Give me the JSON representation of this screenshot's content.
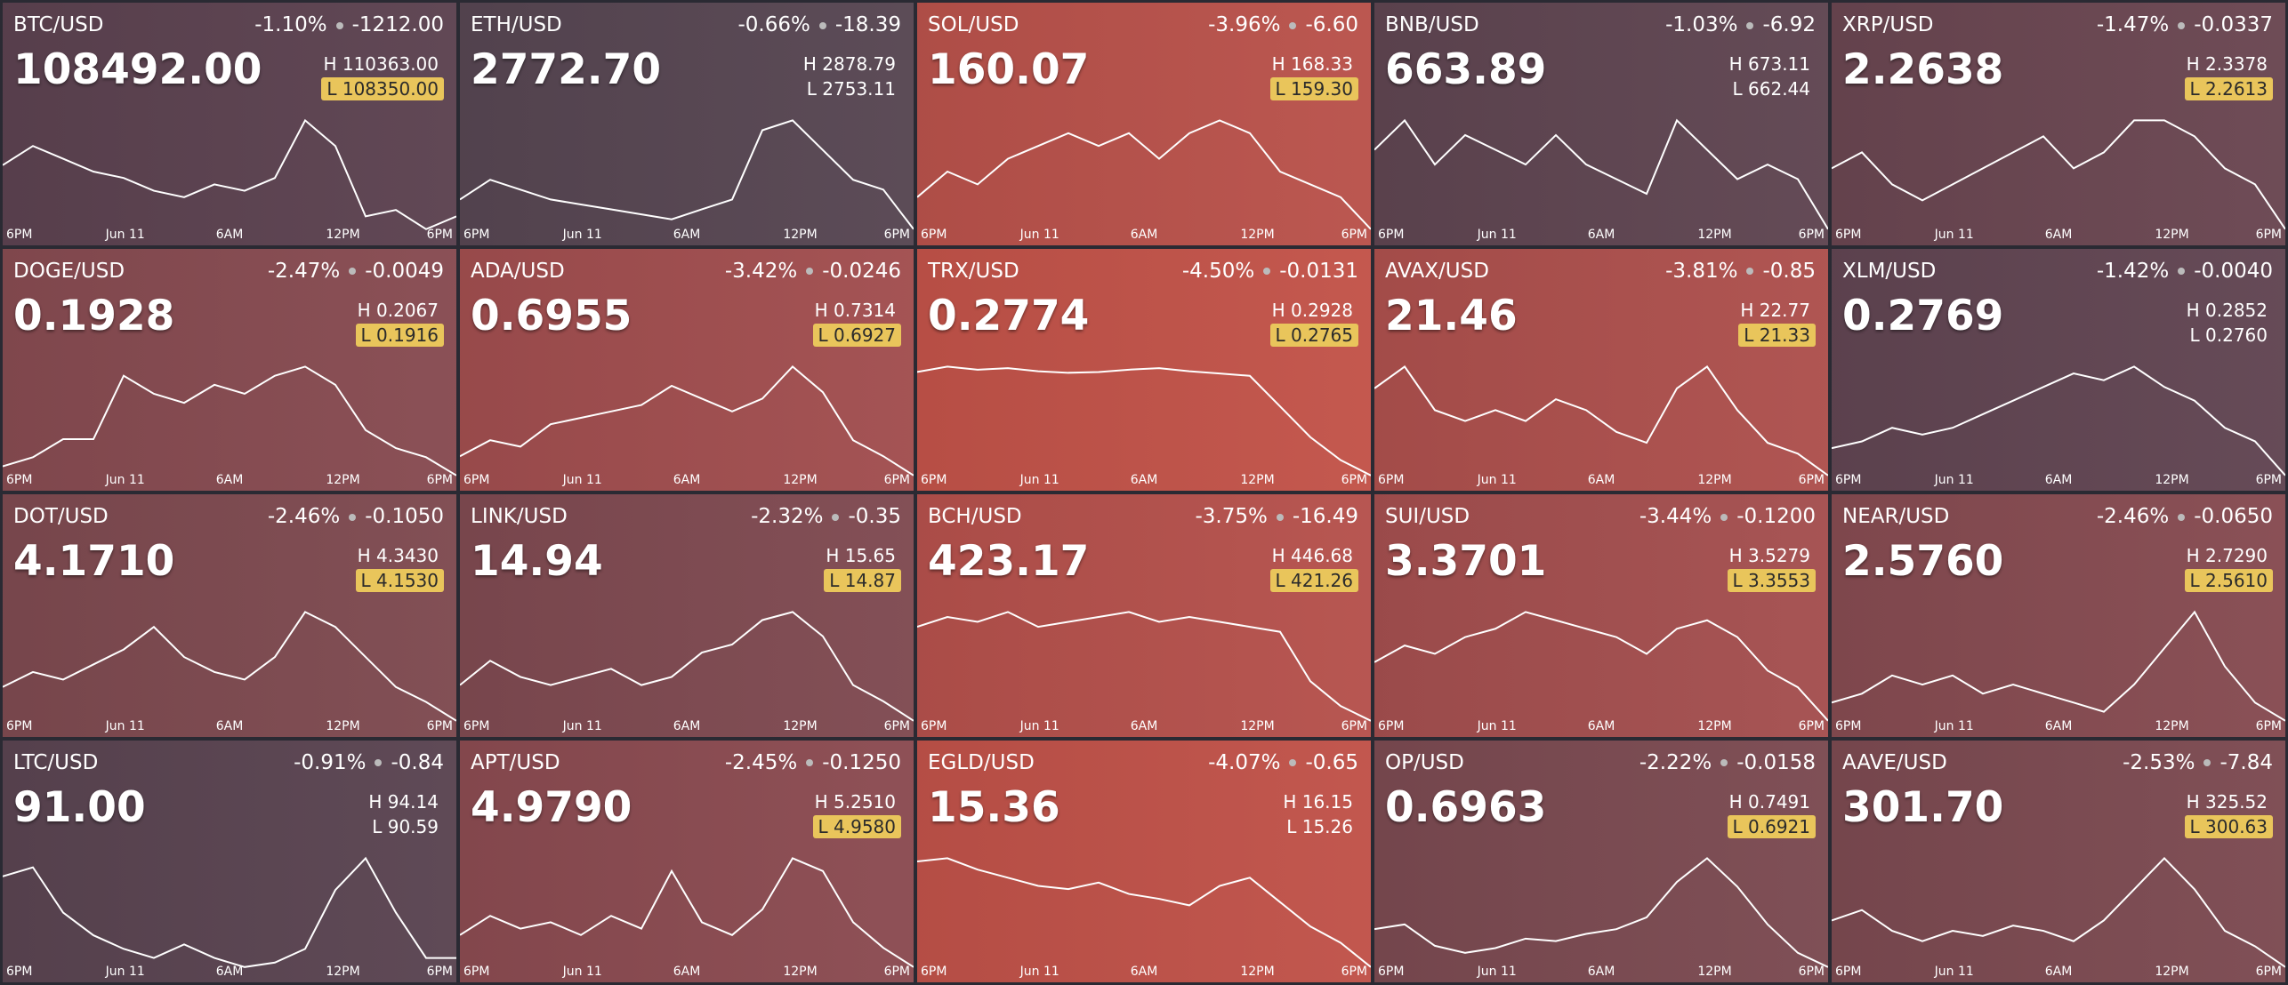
{
  "high_prefix": "H",
  "low_prefix": "L",
  "x_labels": [
    "6PM",
    "Jun 11",
    "6AM",
    "12PM",
    "6PM"
  ],
  "tiles": [
    {
      "pair": "BTC/USD",
      "change_pct": "-1.10%",
      "change": "-1212.00",
      "price": "108492.00",
      "high": "110363.00",
      "low": "108350.00",
      "low_highlight": true,
      "color": "#5c4250",
      "spark": [
        109400,
        109700,
        109500,
        109300,
        109200,
        109000,
        108900,
        109100,
        109000,
        109200,
        110100,
        109700,
        108600,
        108700,
        108400,
        108600
      ]
    },
    {
      "pair": "ETH/USD",
      "change_pct": "-0.66%",
      "change": "-18.39",
      "price": "2772.70",
      "high": "2878.79",
      "low": "2753.11",
      "low_highlight": false,
      "color": "#574652",
      "spark": [
        2790,
        2810,
        2800,
        2790,
        2785,
        2780,
        2775,
        2770,
        2780,
        2790,
        2860,
        2870,
        2840,
        2810,
        2800,
        2760
      ]
    },
    {
      "pair": "SOL/USD",
      "change_pct": "-3.96%",
      "change": "-6.60",
      "price": "160.07",
      "high": "168.33",
      "low": "159.30",
      "low_highlight": true,
      "color": "#b9524b",
      "spark": [
        162,
        164,
        163,
        165,
        166,
        167,
        166,
        167,
        165,
        167,
        168,
        167,
        164,
        163,
        162,
        159.5
      ]
    },
    {
      "pair": "BNB/USD",
      "change_pct": "-1.03%",
      "change": "-6.92",
      "price": "663.89",
      "high": "673.11",
      "low": "662.44",
      "low_highlight": false,
      "color": "#5f4551",
      "spark": [
        668,
        670,
        667,
        669,
        668,
        667,
        669,
        667,
        666,
        665,
        670,
        668,
        666,
        667,
        666,
        662.6
      ]
    },
    {
      "pair": "XRP/USD",
      "change_pct": "-1.47%",
      "change": "-0.0337",
      "price": "2.2638",
      "high": "2.3378",
      "low": "2.2613",
      "low_highlight": true,
      "color": "#6a4651",
      "spark": [
        2.3,
        2.31,
        2.29,
        2.28,
        2.29,
        2.3,
        2.31,
        2.32,
        2.3,
        2.31,
        2.33,
        2.33,
        2.32,
        2.3,
        2.29,
        2.262
      ]
    },
    {
      "pair": "DOGE/USD",
      "change_pct": "-2.47%",
      "change": "-0.0049",
      "price": "0.1928",
      "high": "0.2067",
      "low": "0.1916",
      "low_highlight": true,
      "color": "#874b51",
      "spark": [
        0.193,
        0.194,
        0.196,
        0.196,
        0.203,
        0.201,
        0.2,
        0.202,
        0.201,
        0.203,
        0.204,
        0.202,
        0.197,
        0.195,
        0.194,
        0.192
      ]
    },
    {
      "pair": "ADA/USD",
      "change_pct": "-3.42%",
      "change": "-0.0246",
      "price": "0.6955",
      "high": "0.7314",
      "low": "0.6927",
      "low_highlight": true,
      "color": "#a14e4f",
      "spark": [
        0.7,
        0.705,
        0.703,
        0.71,
        0.712,
        0.714,
        0.716,
        0.722,
        0.718,
        0.714,
        0.718,
        0.728,
        0.72,
        0.705,
        0.7,
        0.694
      ]
    },
    {
      "pair": "TRX/USD",
      "change_pct": "-4.50%",
      "change": "-0.0131",
      "price": "0.2774",
      "high": "0.2928",
      "low": "0.2765",
      "low_highlight": true,
      "color": "#c25349",
      "spark": [
        0.2905,
        0.2912,
        0.2908,
        0.291,
        0.2906,
        0.2904,
        0.2905,
        0.2908,
        0.291,
        0.2906,
        0.2903,
        0.29,
        0.286,
        0.282,
        0.279,
        0.277
      ]
    },
    {
      "pair": "AVAX/USD",
      "change_pct": "-3.81%",
      "change": "-0.85",
      "price": "21.46",
      "high": "22.77",
      "low": "21.33",
      "low_highlight": true,
      "color": "#ad504d",
      "spark": [
        22.2,
        22.4,
        22.0,
        21.9,
        22.0,
        21.9,
        22.1,
        22.0,
        21.8,
        21.7,
        22.2,
        22.4,
        22.0,
        21.7,
        21.6,
        21.4
      ]
    },
    {
      "pair": "XLM/USD",
      "change_pct": "-1.42%",
      "change": "-0.0040",
      "price": "0.2769",
      "high": "0.2852",
      "low": "0.2760",
      "low_highlight": false,
      "color": "#614552",
      "spark": [
        0.2785,
        0.279,
        0.28,
        0.2795,
        0.28,
        0.281,
        0.282,
        0.283,
        0.284,
        0.2835,
        0.2845,
        0.283,
        0.282,
        0.28,
        0.279,
        0.2765
      ]
    },
    {
      "pair": "DOT/USD",
      "change_pct": "-2.46%",
      "change": "-0.1050",
      "price": "4.1710",
      "high": "4.3430",
      "low": "4.1530",
      "low_highlight": true,
      "color": "#7e4a50",
      "spark": [
        4.2,
        4.22,
        4.21,
        4.23,
        4.25,
        4.28,
        4.24,
        4.22,
        4.21,
        4.24,
        4.3,
        4.28,
        4.24,
        4.2,
        4.18,
        4.155
      ]
    },
    {
      "pair": "LINK/USD",
      "change_pct": "-2.32%",
      "change": "-0.35",
      "price": "14.94",
      "high": "15.65",
      "low": "14.87",
      "low_highlight": true,
      "color": "#7f4a51",
      "spark": [
        15.1,
        15.25,
        15.15,
        15.1,
        15.15,
        15.2,
        15.1,
        15.15,
        15.3,
        15.35,
        15.5,
        15.55,
        15.4,
        15.1,
        15.0,
        14.88
      ]
    },
    {
      "pair": "BCH/USD",
      "change_pct": "-3.75%",
      "change": "-16.49",
      "price": "423.17",
      "high": "446.68",
      "low": "421.26",
      "low_highlight": true,
      "color": "#b5514c",
      "spark": [
        441,
        443,
        442,
        444,
        441,
        442,
        443,
        444,
        442,
        443,
        442,
        441,
        440,
        430,
        425,
        422
      ]
    },
    {
      "pair": "SUI/USD",
      "change_pct": "-3.44%",
      "change": "-0.1200",
      "price": "3.3701",
      "high": "3.5279",
      "low": "3.3553",
      "low_highlight": true,
      "color": "#a44f4f",
      "spark": [
        3.43,
        3.45,
        3.44,
        3.46,
        3.47,
        3.49,
        3.48,
        3.47,
        3.46,
        3.44,
        3.47,
        3.48,
        3.46,
        3.42,
        3.4,
        3.36
      ]
    },
    {
      "pair": "NEAR/USD",
      "change_pct": "-2.46%",
      "change": "-0.0650",
      "price": "2.5760",
      "high": "2.7290",
      "low": "2.5610",
      "low_highlight": true,
      "color": "#864b51",
      "spark": [
        2.6,
        2.61,
        2.63,
        2.62,
        2.63,
        2.61,
        2.62,
        2.61,
        2.6,
        2.59,
        2.62,
        2.66,
        2.7,
        2.64,
        2.6,
        2.58
      ]
    },
    {
      "pair": "LTC/USD",
      "change_pct": "-0.91%",
      "change": "-0.84",
      "price": "91.00",
      "high": "94.14",
      "low": "90.59",
      "low_highlight": false,
      "color": "#5a4451",
      "spark": [
        92.8,
        93.0,
        92.0,
        91.5,
        91.2,
        91.0,
        91.3,
        91.0,
        90.8,
        90.9,
        91.2,
        92.5,
        93.2,
        92.0,
        91.0,
        91.0
      ]
    },
    {
      "pair": "APT/USD",
      "change_pct": "-2.45%",
      "change": "-0.1250",
      "price": "4.9790",
      "high": "5.2510",
      "low": "4.9580",
      "low_highlight": true,
      "color": "#8b4b51",
      "spark": [
        5.02,
        5.05,
        5.03,
        5.04,
        5.02,
        5.05,
        5.03,
        5.12,
        5.04,
        5.02,
        5.06,
        5.14,
        5.12,
        5.04,
        5.0,
        4.97
      ]
    },
    {
      "pair": "EGLD/USD",
      "change_pct": "-4.07%",
      "change": "-0.65",
      "price": "15.36",
      "high": "16.15",
      "low": "15.26",
      "low_highlight": false,
      "color": "#c05249",
      "spark": [
        15.95,
        15.97,
        15.9,
        15.85,
        15.8,
        15.78,
        15.82,
        15.75,
        15.72,
        15.68,
        15.8,
        15.85,
        15.7,
        15.55,
        15.45,
        15.3
      ]
    },
    {
      "pair": "OP/USD",
      "change_pct": "-2.22%",
      "change": "-0.0158",
      "price": "0.6963",
      "high": "0.7491",
      "low": "0.6921",
      "low_highlight": true,
      "color": "#7b4a51",
      "spark": [
        0.71,
        0.712,
        0.703,
        0.7,
        0.702,
        0.706,
        0.705,
        0.708,
        0.71,
        0.715,
        0.73,
        0.74,
        0.728,
        0.712,
        0.7,
        0.694
      ]
    },
    {
      "pair": "AAVE/USD",
      "change_pct": "-2.53%",
      "change": "-7.84",
      "price": "301.70",
      "high": "325.52",
      "low": "300.63",
      "low_highlight": true,
      "color": "#7c4a51",
      "spark": [
        310,
        312,
        308,
        306,
        308,
        307,
        309,
        308,
        306,
        310,
        316,
        322,
        316,
        308,
        305,
        301
      ]
    }
  ]
}
